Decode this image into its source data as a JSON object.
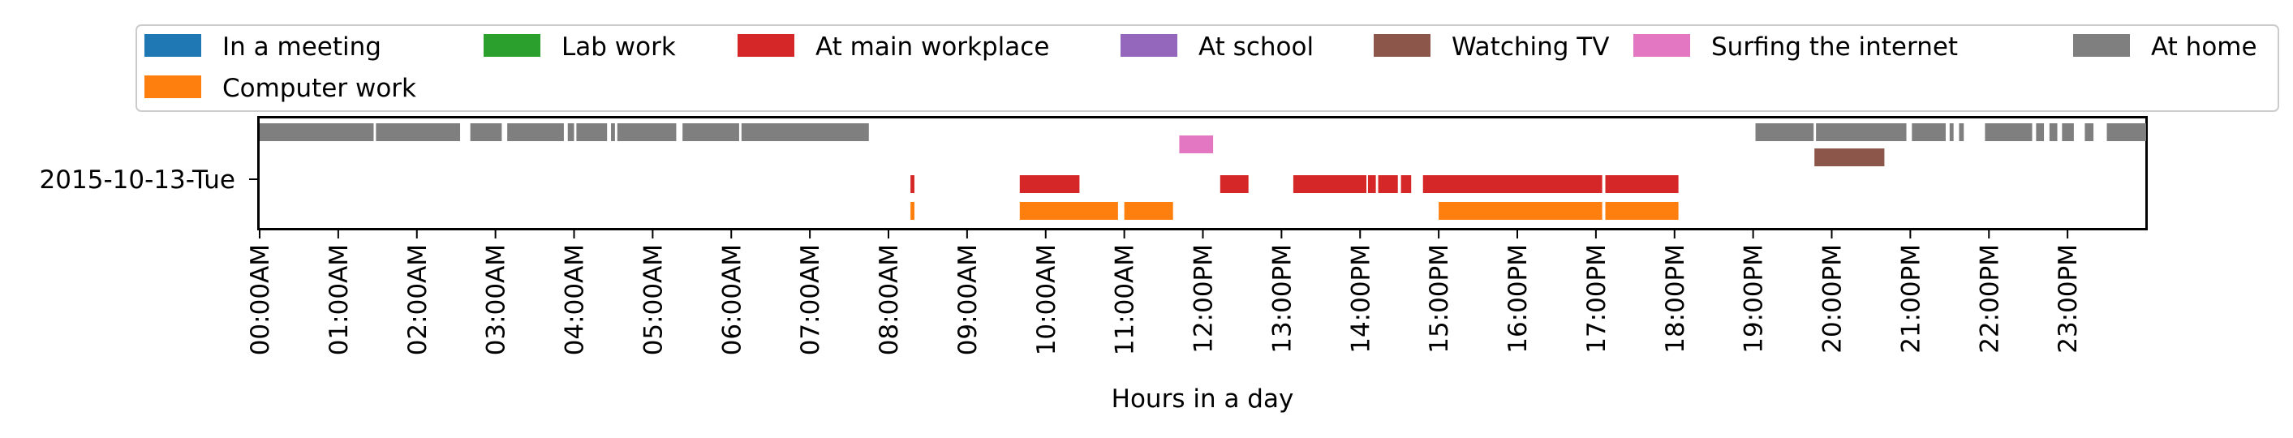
{
  "chart_data": {
    "type": "timeline",
    "xlabel": "Hours in a day",
    "ylabel": "",
    "xlim": [
      0,
      24
    ],
    "y_category": "2015-10-13-Tue",
    "x_ticks": [
      "00:00AM",
      "01:00AM",
      "02:00AM",
      "03:00AM",
      "04:00AM",
      "05:00AM",
      "06:00AM",
      "07:00AM",
      "08:00AM",
      "09:00AM",
      "10:00AM",
      "11:00AM",
      "12:00PM",
      "13:00PM",
      "14:00PM",
      "15:00PM",
      "16:00PM",
      "17:00PM",
      "18:00PM",
      "19:00PM",
      "20:00PM",
      "21:00PM",
      "22:00PM",
      "23:00PM"
    ],
    "legend_position": "top",
    "series": [
      {
        "name": "In a meeting",
        "color": "#1f77b4",
        "intervals": []
      },
      {
        "name": "Computer work",
        "color": "#ff7f0e",
        "intervals": [
          [
            8.28,
            8.33
          ],
          [
            9.67,
            10.92
          ],
          [
            11.0,
            11.62
          ],
          [
            15.0,
            17.08
          ],
          [
            17.12,
            18.05
          ]
        ]
      },
      {
        "name": "Lab work",
        "color": "#2ca02c",
        "intervals": []
      },
      {
        "name": "At main workplace",
        "color": "#d62728",
        "intervals": [
          [
            8.28,
            8.33
          ],
          [
            9.67,
            10.43
          ],
          [
            12.22,
            12.58
          ],
          [
            13.15,
            14.08
          ],
          [
            14.1,
            14.2
          ],
          [
            14.23,
            14.48
          ],
          [
            14.52,
            14.65
          ],
          [
            14.8,
            17.08
          ],
          [
            17.12,
            18.05
          ]
        ]
      },
      {
        "name": "At school",
        "color": "#9467bd",
        "intervals": []
      },
      {
        "name": "Watching TV",
        "color": "#8c564b",
        "intervals": [
          [
            19.78,
            20.67
          ]
        ]
      },
      {
        "name": "Surfing the internet",
        "color": "#e377c2",
        "intervals": [
          [
            11.7,
            12.13
          ]
        ]
      },
      {
        "name": "At home",
        "color": "#7f7f7f",
        "intervals": [
          [
            0.0,
            1.45
          ],
          [
            1.48,
            2.55
          ],
          [
            2.68,
            3.08
          ],
          [
            3.15,
            3.87
          ],
          [
            3.92,
            4.0
          ],
          [
            4.03,
            4.42
          ],
          [
            4.47,
            4.52
          ],
          [
            4.55,
            5.3
          ],
          [
            5.38,
            6.1
          ],
          [
            6.13,
            7.75
          ],
          [
            19.03,
            19.77
          ],
          [
            19.8,
            20.95
          ],
          [
            21.02,
            21.45
          ],
          [
            21.5,
            21.55
          ],
          [
            21.62,
            21.68
          ],
          [
            21.95,
            22.55
          ],
          [
            22.6,
            22.7
          ],
          [
            22.77,
            22.87
          ],
          [
            22.93,
            23.08
          ],
          [
            23.22,
            23.33
          ],
          [
            23.5,
            24.02
          ],
          [
            23.92,
            23.97
          ]
        ]
      }
    ]
  }
}
